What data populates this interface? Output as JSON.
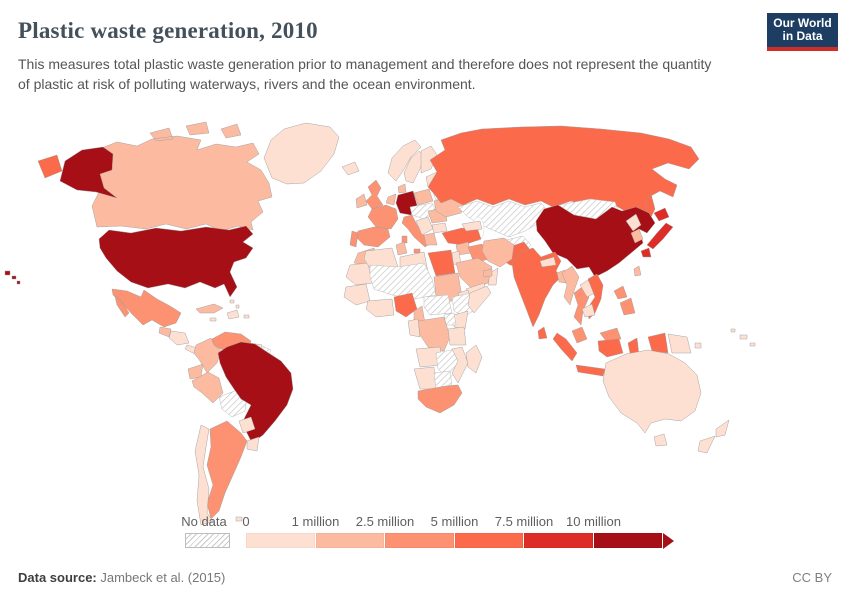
{
  "header": {
    "title": "Plastic waste generation, 2010",
    "subtitle": "This measures total plastic waste generation prior to management and therefore does not represent the quantity of plastic at risk of polluting waterways, rivers and the ocean environment."
  },
  "logo": {
    "line1": "Our World",
    "line2": "in Data",
    "bg_color": "#1d3d63",
    "accent_color": "#cf2d27"
  },
  "legend": {
    "no_data_label": "No data",
    "ticks": [
      "0",
      "1 million",
      "2.5 million",
      "5 million",
      "7.5 million",
      "10 million"
    ]
  },
  "footer": {
    "source_label": "Data source:",
    "source_value": " Jambeck et al. (2015)",
    "license": "CC BY"
  },
  "chart_data": {
    "type": "choropleth",
    "title": "Plastic waste generation, 2010",
    "no_data": {
      "label": "No data",
      "pattern": "diagonal-hatch"
    },
    "bins": [
      {
        "label": "0-1 million",
        "color": "#fee0d2"
      },
      {
        "label": "1-2.5 million",
        "color": "#fcbba1"
      },
      {
        "label": "2.5-5 million",
        "color": "#fc9272"
      },
      {
        "label": "5-7.5 million",
        "color": "#fb6a4a"
      },
      {
        "label": "7.5-10 million",
        "color": "#de2d26"
      },
      {
        "label": "10+ million",
        "color": "#a50f15"
      }
    ],
    "countries": {
      "United States": "10+ million",
      "Canada": "1-2.5 million",
      "Greenland": "0-1 million",
      "Mexico": "2.5-5 million",
      "Guatemala": "1-2.5 million",
      "Honduras & Nicaragua": "0-1 million",
      "Costa Rica & Panama": "0-1 million",
      "Cuba": "1-2.5 million",
      "Hispaniola": "0-1 million",
      "Jamaica": "0-1 million",
      "Puerto Rico": "0-1 million",
      "Bahamas": "0-1 million",
      "Venezuela": "2.5-5 million",
      "Colombia": "1-2.5 million",
      "Guyana & Suriname": "0-1 million",
      "French Guiana": "No data",
      "Ecuador": "1-2.5 million",
      "Peru": "1-2.5 million",
      "Bolivia": "No data",
      "Brazil": "10+ million",
      "Paraguay": "0-1 million",
      "Uruguay": "0-1 million",
      "Argentina": "2.5-5 million",
      "Chile": "0-1 million",
      "Falkland Islands": "0-1 million",
      "Iceland": "0-1 million",
      "Norway": "0-1 million",
      "Sweden": "0-1 million",
      "Finland": "0-1 million",
      "Denmark": "1-2.5 million",
      "United Kingdom": "2.5-5 million",
      "Ireland": "1-2.5 million",
      "Baltic states": "0-1 million",
      "Belarus": "No data",
      "Poland": "1-2.5 million",
      "Germany": "10+ million",
      "Benelux": "1-2.5 million",
      "France": "2.5-5 million",
      "Spain": "2.5-5 million",
      "Portugal": "2.5-5 million",
      "Italy": "2.5-5 million",
      "Central Europe (landlocked)": "No data",
      "Western Balkans": "0-1 million",
      "Romania": "1-2.5 million",
      "Bulgaria": "0-1 million",
      "Greece": "1-2.5 million",
      "Ukraine": "1-2.5 million",
      "Russia": "5-7.5 million",
      "Kazakhstan & Central Asia": "No data",
      "Afghanistan": "No data",
      "Mongolia": "No data",
      "China": "10+ million",
      "Taiwan": "1-2.5 million",
      "North Korea": "0-1 million",
      "South Korea": "1-2.5 million",
      "Japan": "7.5-10 million",
      "Pakistan": "5-7.5 million",
      "India": "5-7.5 million",
      "Nepal": "0-1 million",
      "Bangladesh": "1-2.5 million",
      "Sri Lanka": "5-7.5 million",
      "Myanmar": "1-2.5 million",
      "Thailand": "2.5-5 million",
      "Laos": "0-1 million",
      "Vietnam": "5-7.5 million",
      "Cambodia": "0-1 million",
      "Malaysia": "2.5-5 million",
      "Indonesia": "5-7.5 million",
      "Philippines": "2.5-5 million",
      "Papua New Guinea": "0-1 million",
      "Fiji": "0-1 million",
      "Australia": "0-1 million",
      "New Zealand": "0-1 million",
      "Turkey": "5-7.5 million",
      "Caucasus": "0-1 million",
      "Syria": "1-2.5 million",
      "Israel & Jordan": "0-1 million",
      "Iraq": "2.5-5 million",
      "Iran": "1-2.5 million",
      "Saudi Arabia": "1-2.5 million",
      "Yemen": "0-1 million",
      "Oman": "0-1 million",
      "United Arab Emirates": "1-2.5 million",
      "Morocco": "1-2.5 million",
      "Western Sahara & Mauritania": "0-1 million",
      "Algeria": "0-1 million",
      "Tunisia": "1-2.5 million",
      "Libya": "0-1 million",
      "Egypt": "5-7.5 million",
      "Senegal & Guinea": "0-1 million",
      "Mali, Niger & Chad": "No data",
      "Sudan": "1-2.5 million",
      "Eritrea & Djibouti": "0-1 million",
      "Nigeria": "5-7.5 million",
      "Ghana & Cote d'Ivoire": "0-1 million",
      "Cameroon": "1-2.5 million",
      "Central African Republic & South Sudan": "No data",
      "Ethiopia": "No data",
      "Somalia": "0-1 million",
      "Kenya": "0-1 million",
      "Uganda": "No data",
      "Democratic Republic of Congo": "1-2.5 million",
      "Gabon & Congo": "0-1 million",
      "Tanzania": "0-1 million",
      "Angola": "0-1 million",
      "Zambia & Zimbabwe": "No data",
      "Mozambique": "0-1 million",
      "Namibia": "0-1 million",
      "Botswana": "No data",
      "South Africa": "2.5-5 million",
      "Madagascar": "0-1 million"
    }
  }
}
